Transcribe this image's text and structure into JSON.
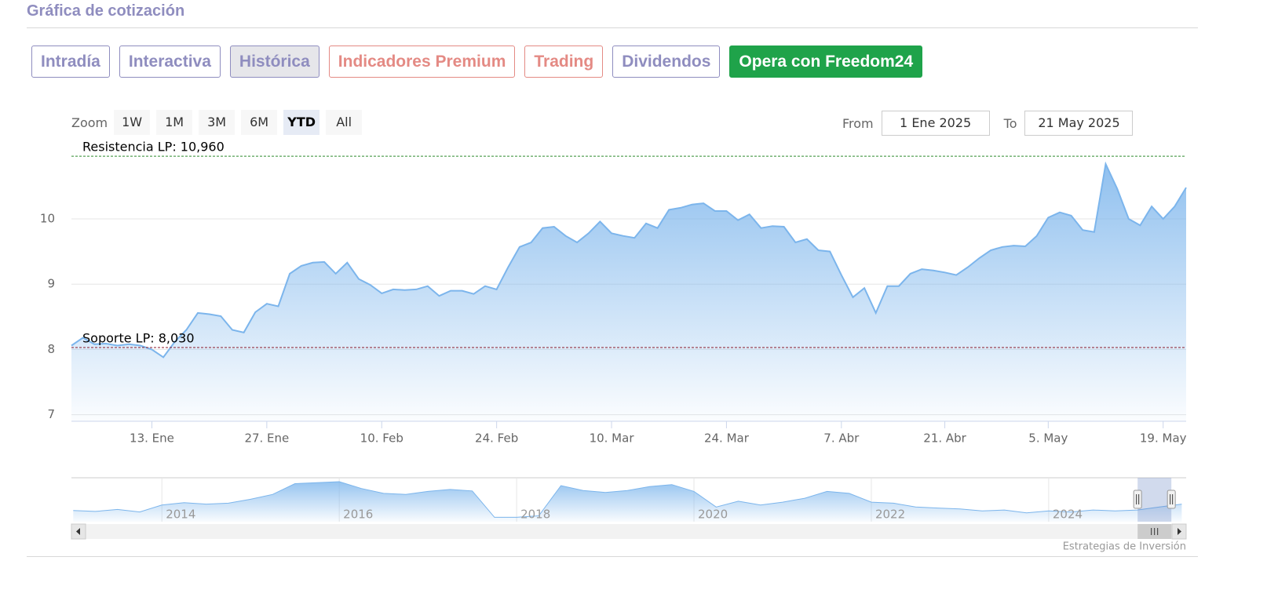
{
  "header": {
    "title": "Gráfica de cotización"
  },
  "tabs": [
    "Intradía",
    "Interactiva",
    "Histórica",
    "Indicadores Premium",
    "Trading",
    "Dividendos",
    "Opera con Freedom24"
  ],
  "zoom": {
    "label": "Zoom",
    "buttons": [
      "1W",
      "1M",
      "3M",
      "6M",
      "YTD",
      "All"
    ]
  },
  "range": {
    "from_label": "From",
    "from": "1 Ene 2025",
    "to_label": "To",
    "to": "21 May 2025"
  },
  "chart_data": {
    "type": "area",
    "color": "#7cb5ec",
    "x": [
      "2025-01-02",
      "2025-01-03",
      "2025-01-06",
      "2025-01-07",
      "2025-01-08",
      "2025-01-09",
      "2025-01-10",
      "2025-01-13",
      "2025-01-14",
      "2025-01-15",
      "2025-01-16",
      "2025-01-17",
      "2025-01-20",
      "2025-01-21",
      "2025-01-22",
      "2025-01-23",
      "2025-01-24",
      "2025-01-27",
      "2025-01-28",
      "2025-01-29",
      "2025-01-30",
      "2025-01-31",
      "2025-02-03",
      "2025-02-04",
      "2025-02-05",
      "2025-02-06",
      "2025-02-07",
      "2025-02-10",
      "2025-02-11",
      "2025-02-12",
      "2025-02-13",
      "2025-02-14",
      "2025-02-17",
      "2025-02-18",
      "2025-02-19",
      "2025-02-20",
      "2025-02-21",
      "2025-02-24",
      "2025-02-25",
      "2025-02-26",
      "2025-02-27",
      "2025-02-28",
      "2025-03-03",
      "2025-03-04",
      "2025-03-05",
      "2025-03-06",
      "2025-03-07",
      "2025-03-10",
      "2025-03-11",
      "2025-03-12",
      "2025-03-13",
      "2025-03-14",
      "2025-03-17",
      "2025-03-18",
      "2025-03-19",
      "2025-03-20",
      "2025-03-21",
      "2025-03-24",
      "2025-03-25",
      "2025-03-26",
      "2025-03-27",
      "2025-03-28",
      "2025-03-31",
      "2025-04-01",
      "2025-04-02",
      "2025-04-03",
      "2025-04-04",
      "2025-04-07",
      "2025-04-08",
      "2025-04-09",
      "2025-04-10",
      "2025-04-11",
      "2025-04-14",
      "2025-04-15",
      "2025-04-16",
      "2025-04-17",
      "2025-04-21",
      "2025-04-22",
      "2025-04-23",
      "2025-04-24",
      "2025-04-25",
      "2025-04-28",
      "2025-04-29",
      "2025-04-30",
      "2025-05-02",
      "2025-05-05",
      "2025-05-06",
      "2025-05-07",
      "2025-05-08",
      "2025-05-09",
      "2025-05-12",
      "2025-05-13",
      "2025-05-14",
      "2025-05-15",
      "2025-05-16",
      "2025-05-19",
      "2025-05-20",
      "2025-05-21"
    ],
    "values": [
      8.06,
      8.18,
      8.08,
      8.09,
      8.06,
      8.08,
      8.06,
      8.0,
      7.88,
      8.12,
      8.3,
      8.56,
      8.54,
      8.51,
      8.3,
      8.26,
      8.57,
      8.7,
      8.66,
      9.16,
      9.28,
      9.33,
      9.34,
      9.16,
      9.33,
      9.08,
      8.99,
      8.86,
      8.92,
      8.91,
      8.92,
      8.97,
      8.82,
      8.9,
      8.9,
      8.85,
      8.97,
      8.92,
      9.26,
      9.57,
      9.64,
      9.86,
      9.88,
      9.74,
      9.64,
      9.78,
      9.96,
      9.78,
      9.74,
      9.71,
      9.93,
      9.86,
      10.14,
      10.17,
      10.22,
      10.24,
      10.12,
      10.12,
      9.98,
      10.07,
      9.86,
      9.89,
      9.88,
      9.64,
      9.69,
      9.52,
      9.5,
      9.14,
      8.8,
      8.94,
      8.56,
      8.97,
      8.97,
      9.16,
      9.23,
      9.21,
      9.18,
      9.14,
      9.26,
      9.4,
      9.52,
      9.57,
      9.59,
      9.58,
      9.74,
      10.02,
      10.1,
      10.05,
      9.83,
      9.8,
      10.84,
      10.46,
      10.0,
      9.9,
      10.19,
      10.0,
      10.19,
      10.48
    ],
    "ylim": [
      6.9,
      11.25
    ],
    "yticks": [
      7,
      8,
      9,
      10
    ],
    "grid": true,
    "xticks": [
      {
        "value": "2025-01-13",
        "label": "13. Ene"
      },
      {
        "value": "2025-01-27",
        "label": "27. Ene"
      },
      {
        "value": "2025-02-10",
        "label": "10. Feb"
      },
      {
        "value": "2025-02-24",
        "label": "24. Feb"
      },
      {
        "value": "2025-03-10",
        "label": "10. Mar"
      },
      {
        "value": "2025-03-24",
        "label": "24. Mar"
      },
      {
        "value": "2025-04-07",
        "label": "7. Abr"
      },
      {
        "value": "2025-04-21",
        "label": "21. Abr"
      },
      {
        "value": "2025-05-05",
        "label": "5. May"
      },
      {
        "value": "2025-05-19",
        "label": "19. May"
      }
    ],
    "plot_lines": [
      {
        "value": 10.96,
        "label": "Resistencia LP: 10,960",
        "color": "#2e8b2e"
      },
      {
        "value": 8.03,
        "label": "Soporte LP: 8,030",
        "color": "#8b1a2b"
      }
    ]
  },
  "navigator": {
    "color": "#7cb5ec",
    "xlim": [
      2012.98,
      2025.55
    ],
    "ylim": [
      4,
      13
    ],
    "xticks": [
      2014,
      2016,
      2018,
      2020,
      2022,
      2024
    ],
    "x": [
      2013,
      2013.25,
      2013.5,
      2013.75,
      2014,
      2014.25,
      2014.5,
      2014.75,
      2015,
      2015.25,
      2015.5,
      2015.75,
      2016,
      2016.25,
      2016.5,
      2016.75,
      2017,
      2017.25,
      2017.5,
      2017.75,
      2018,
      2018.25,
      2018.5,
      2018.75,
      2019,
      2019.25,
      2019.5,
      2019.75,
      2020,
      2020.25,
      2020.5,
      2020.75,
      2021,
      2021.25,
      2021.5,
      2021.75,
      2022,
      2022.25,
      2022.5,
      2022.75,
      2023,
      2023.25,
      2023.5,
      2023.75,
      2024,
      2024.25,
      2024.5,
      2024.75,
      2025,
      2025.25,
      2025.5
    ],
    "values": [
      6.3,
      6.1,
      6.5,
      6.0,
      7.4,
      7.9,
      7.6,
      7.8,
      8.6,
      9.6,
      11.8,
      12.0,
      12.2,
      10.8,
      9.8,
      9.6,
      10.2,
      10.6,
      10.3,
      4.9,
      4.9,
      5.2,
      11.4,
      10.4,
      10.0,
      10.4,
      11.2,
      11.6,
      10.2,
      7.0,
      8.2,
      7.4,
      8.0,
      8.8,
      10.2,
      9.8,
      8.0,
      7.8,
      7.0,
      6.8,
      6.6,
      6.2,
      6.4,
      5.8,
      6.2,
      6.0,
      6.4,
      6.2,
      6.4,
      7.0,
      7.6
    ]
  },
  "credit": "Estrategias de Inversión"
}
